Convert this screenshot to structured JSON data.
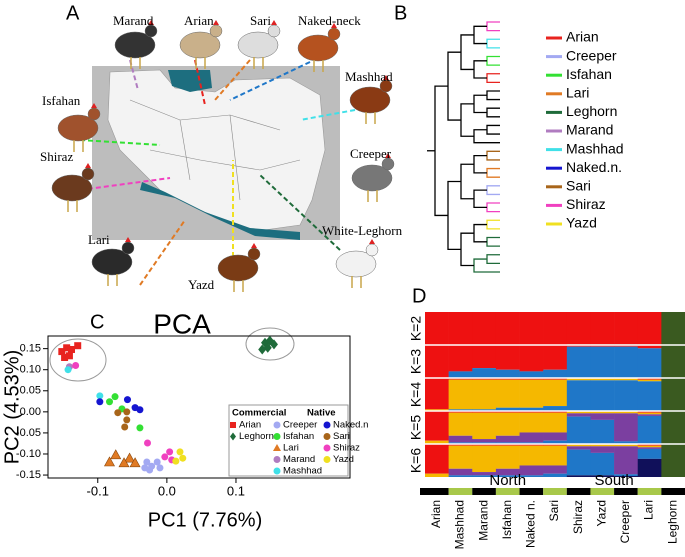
{
  "panel_a": {
    "letter": "A",
    "breeds": [
      "Marand",
      "Arian",
      "Sari",
      "Naked-neck",
      "Mashhad",
      "Isfahan",
      "Creeper",
      "Shiraz",
      "Lari",
      "Yazd",
      "White-Leghorn"
    ]
  },
  "panel_b": {
    "letter": "B",
    "legend": [
      {
        "name": "Arian",
        "color": "#e8231f"
      },
      {
        "name": "Creeper",
        "color": "#a3a9f2"
      },
      {
        "name": "Isfahan",
        "color": "#33e033"
      },
      {
        "name": "Lari",
        "color": "#e07a24"
      },
      {
        "name": "Leghorn",
        "color": "#1f6b3a"
      },
      {
        "name": "Marand",
        "color": "#b07cc0"
      },
      {
        "name": "Mashhad",
        "color": "#40e0e8"
      },
      {
        "name": "Naked.n.",
        "color": "#1515d0"
      },
      {
        "name": "Sari",
        "color": "#a8651a"
      },
      {
        "name": "Shiraz",
        "color": "#f040c0"
      },
      {
        "name": "Yazd",
        "color": "#f0e020"
      }
    ]
  },
  "chart_data": [
    {
      "type": "scatter",
      "panel_letter": "C",
      "title": "PCA",
      "x_label": "PC1 (7.76%)",
      "y_label": "PC2 (4.53%)",
      "xlim": [
        -0.172,
        0.265
      ],
      "ylim": [
        -0.157,
        0.18
      ],
      "xticks": [
        -0.1,
        {
          "value": 0,
          "label": "0.0"
        },
        0.1
      ],
      "yticks": [
        0.15,
        {
          "value": 0.1,
          "label": "0.10"
        },
        0.05,
        {
          "value": 0,
          "label": "0.00"
        },
        -0.05,
        {
          "value": -0.1,
          "label": "-0.10"
        },
        -0.15
      ],
      "legend_groups": [
        "Commercial",
        "Native"
      ],
      "series": [
        {
          "name": "Arian",
          "group": 0,
          "marker": "square",
          "color": "#e8231f",
          "x": [
            -0.152,
            -0.145,
            -0.138,
            -0.129,
            -0.148,
            -0.141
          ],
          "y": [
            0.143,
            0.152,
            0.148,
            0.157,
            0.129,
            0.133
          ]
        },
        {
          "name": "Leghorn",
          "group": 0,
          "marker": "diamond",
          "color": "#1f6b3a",
          "x": [
            0.142,
            0.149,
            0.146,
            0.155,
            0.138
          ],
          "y": [
            0.164,
            0.169,
            0.152,
            0.16,
            0.148
          ]
        },
        {
          "name": "Creeper",
          "group": 1,
          "marker": "circle",
          "color": "#a3a9f2",
          "x": [
            -0.029,
            -0.022,
            -0.014,
            -0.025,
            -0.01,
            -0.032
          ],
          "y": [
            -0.119,
            -0.129,
            -0.119,
            -0.138,
            -0.133,
            -0.133
          ]
        },
        {
          "name": "Isfahan",
          "group": 1,
          "marker": "circle",
          "color": "#33e033",
          "x": [
            -0.075,
            -0.065,
            -0.083,
            -0.039
          ],
          "y": [
            0.036,
            0.007,
            0.024,
            -0.038
          ]
        },
        {
          "name": "Lari",
          "group": 1,
          "marker": "triangle",
          "color": "#e07a24",
          "x": [
            -0.074,
            -0.054,
            -0.062,
            -0.083,
            -0.046
          ],
          "y": [
            -0.102,
            -0.11,
            -0.121,
            -0.119,
            -0.121
          ]
        },
        {
          "name": "Marand",
          "group": 1,
          "marker": "circle",
          "color": "#b07cc0",
          "x": [
            -0.141
          ],
          "y": [
            0.107
          ]
        },
        {
          "name": "Mashhad",
          "group": 1,
          "marker": "circle",
          "color": "#40e0e8",
          "x": [
            -0.143,
            -0.097
          ],
          "y": [
            0.1,
            0.038
          ]
        },
        {
          "name": "Naked.n",
          "group": 1,
          "marker": "circle",
          "color": "#1515d0",
          "x": [
            -0.097,
            -0.046,
            -0.039,
            -0.057
          ],
          "y": [
            0.024,
            0.01,
            0.005,
            0.029
          ]
        },
        {
          "name": "Sari",
          "group": 1,
          "marker": "circle",
          "color": "#a8651a",
          "x": [
            -0.058,
            -0.058,
            -0.061,
            -0.071
          ],
          "y": [
            0,
            -0.019,
            -0.036,
            -0.002
          ]
        },
        {
          "name": "Shiraz",
          "group": 1,
          "marker": "circle",
          "color": "#f040c0",
          "x": [
            -0.028,
            -0.003,
            0.007,
            0.004,
            -0.132
          ],
          "y": [
            -0.074,
            -0.107,
            -0.114,
            -0.095,
            0.11
          ]
        },
        {
          "name": "Yazd",
          "group": 1,
          "marker": "circle",
          "color": "#f0e020",
          "x": [
            0.019,
            0.023,
            0.013
          ],
          "y": [
            -0.095,
            -0.11,
            -0.117
          ]
        }
      ]
    },
    {
      "type": "structure",
      "panel_letter": "D",
      "categories": [
        "Arian",
        "Mashhad",
        "Marand",
        "Isfahan",
        "Naked n.",
        "Sari",
        "Shiraz",
        "Yazd",
        "Creeper",
        "Lari",
        "Leghorn"
      ],
      "regions": [
        "North",
        "South"
      ],
      "rows": [
        {
          "label": "K=2",
          "series": [
            {
              "color": "#ee1111",
              "values": [
                1,
                1,
                1,
                1,
                1,
                1,
                0.98,
                0.98,
                0.98,
                0.98,
                0
              ]
            },
            {
              "color": "#3a5a20",
              "values": [
                0,
                0,
                0,
                0,
                0,
                0,
                0.02,
                0.02,
                0.02,
                0.02,
                1
              ]
            }
          ]
        },
        {
          "label": "K=3",
          "series": [
            {
              "color": "#ee1111",
              "values": [
                1,
                0.8,
                0.7,
                0.75,
                0.8,
                0.75,
                0.05,
                0.05,
                0.05,
                0.1,
                0
              ]
            },
            {
              "color": "#1f77c8",
              "values": [
                0,
                0.2,
                0.3,
                0.25,
                0.2,
                0.25,
                0.95,
                0.95,
                0.95,
                0.9,
                0
              ]
            },
            {
              "color": "#3a5a20",
              "values": [
                0,
                0,
                0,
                0,
                0,
                0,
                0,
                0,
                0,
                0,
                1
              ]
            }
          ]
        },
        {
          "label": "K=4",
          "series": [
            {
              "color": "#ee1111",
              "values": [
                0.95,
                0.05,
                0.05,
                0.05,
                0.05,
                0.05,
                0.02,
                0.02,
                0.02,
                0.05,
                0
              ]
            },
            {
              "color": "#f5b800",
              "values": [
                0.05,
                0.9,
                0.9,
                0.85,
                0.85,
                0.8,
                0.05,
                0.05,
                0.05,
                0.05,
                0
              ]
            },
            {
              "color": "#1f77c8",
              "values": [
                0,
                0.05,
                0.05,
                0.1,
                0.1,
                0.15,
                0.93,
                0.93,
                0.93,
                0.9,
                0
              ]
            },
            {
              "color": "#3a5a20",
              "values": [
                0,
                0,
                0,
                0,
                0,
                0,
                0,
                0,
                0,
                0,
                1
              ]
            }
          ]
        },
        {
          "label": "K=5",
          "series": [
            {
              "color": "#ee1111",
              "values": [
                0.9,
                0.05,
                0.05,
                0.05,
                0.05,
                0.05,
                0.02,
                0.02,
                0.02,
                0.05,
                0
              ]
            },
            {
              "color": "#f5b800",
              "values": [
                0.1,
                0.7,
                0.8,
                0.7,
                0.6,
                0.6,
                0.05,
                0.05,
                0.05,
                0.05,
                0
              ]
            },
            {
              "color": "#7b3fa0",
              "values": [
                0,
                0.2,
                0.1,
                0.2,
                0.3,
                0.25,
                0.1,
                0.2,
                0.85,
                0.05,
                0
              ]
            },
            {
              "color": "#1f77c8",
              "values": [
                0,
                0.05,
                0.05,
                0.05,
                0.05,
                0.1,
                0.83,
                0.73,
                0.08,
                0.85,
                0
              ]
            },
            {
              "color": "#3a5a20",
              "values": [
                0,
                0,
                0,
                0,
                0,
                0,
                0,
                0,
                0,
                0,
                1
              ]
            }
          ]
        },
        {
          "label": "K=6",
          "series": [
            {
              "color": "#ee1111",
              "values": [
                0.9,
                0.05,
                0.05,
                0.05,
                0.05,
                0.05,
                0.02,
                0.02,
                0.02,
                0.05,
                0
              ]
            },
            {
              "color": "#f5b800",
              "values": [
                0.1,
                0.7,
                0.8,
                0.7,
                0.6,
                0.6,
                0.05,
                0.05,
                0.05,
                0.05,
                0
              ]
            },
            {
              "color": "#7b3fa0",
              "values": [
                0,
                0.2,
                0.1,
                0.2,
                0.3,
                0.25,
                0.1,
                0.2,
                0.85,
                0.05,
                0
              ]
            },
            {
              "color": "#1f77c8",
              "values": [
                0,
                0.05,
                0.05,
                0.05,
                0.05,
                0.1,
                0.78,
                0.68,
                0.05,
                0.3,
                0
              ]
            },
            {
              "color": "#10105a",
              "values": [
                0,
                0,
                0,
                0,
                0,
                0,
                0.05,
                0.05,
                0.03,
                0.55,
                0
              ]
            },
            {
              "color": "#3a5a20",
              "values": [
                0,
                0,
                0,
                0,
                0,
                0,
                0,
                0,
                0,
                0,
                1
              ]
            }
          ]
        }
      ]
    }
  ]
}
